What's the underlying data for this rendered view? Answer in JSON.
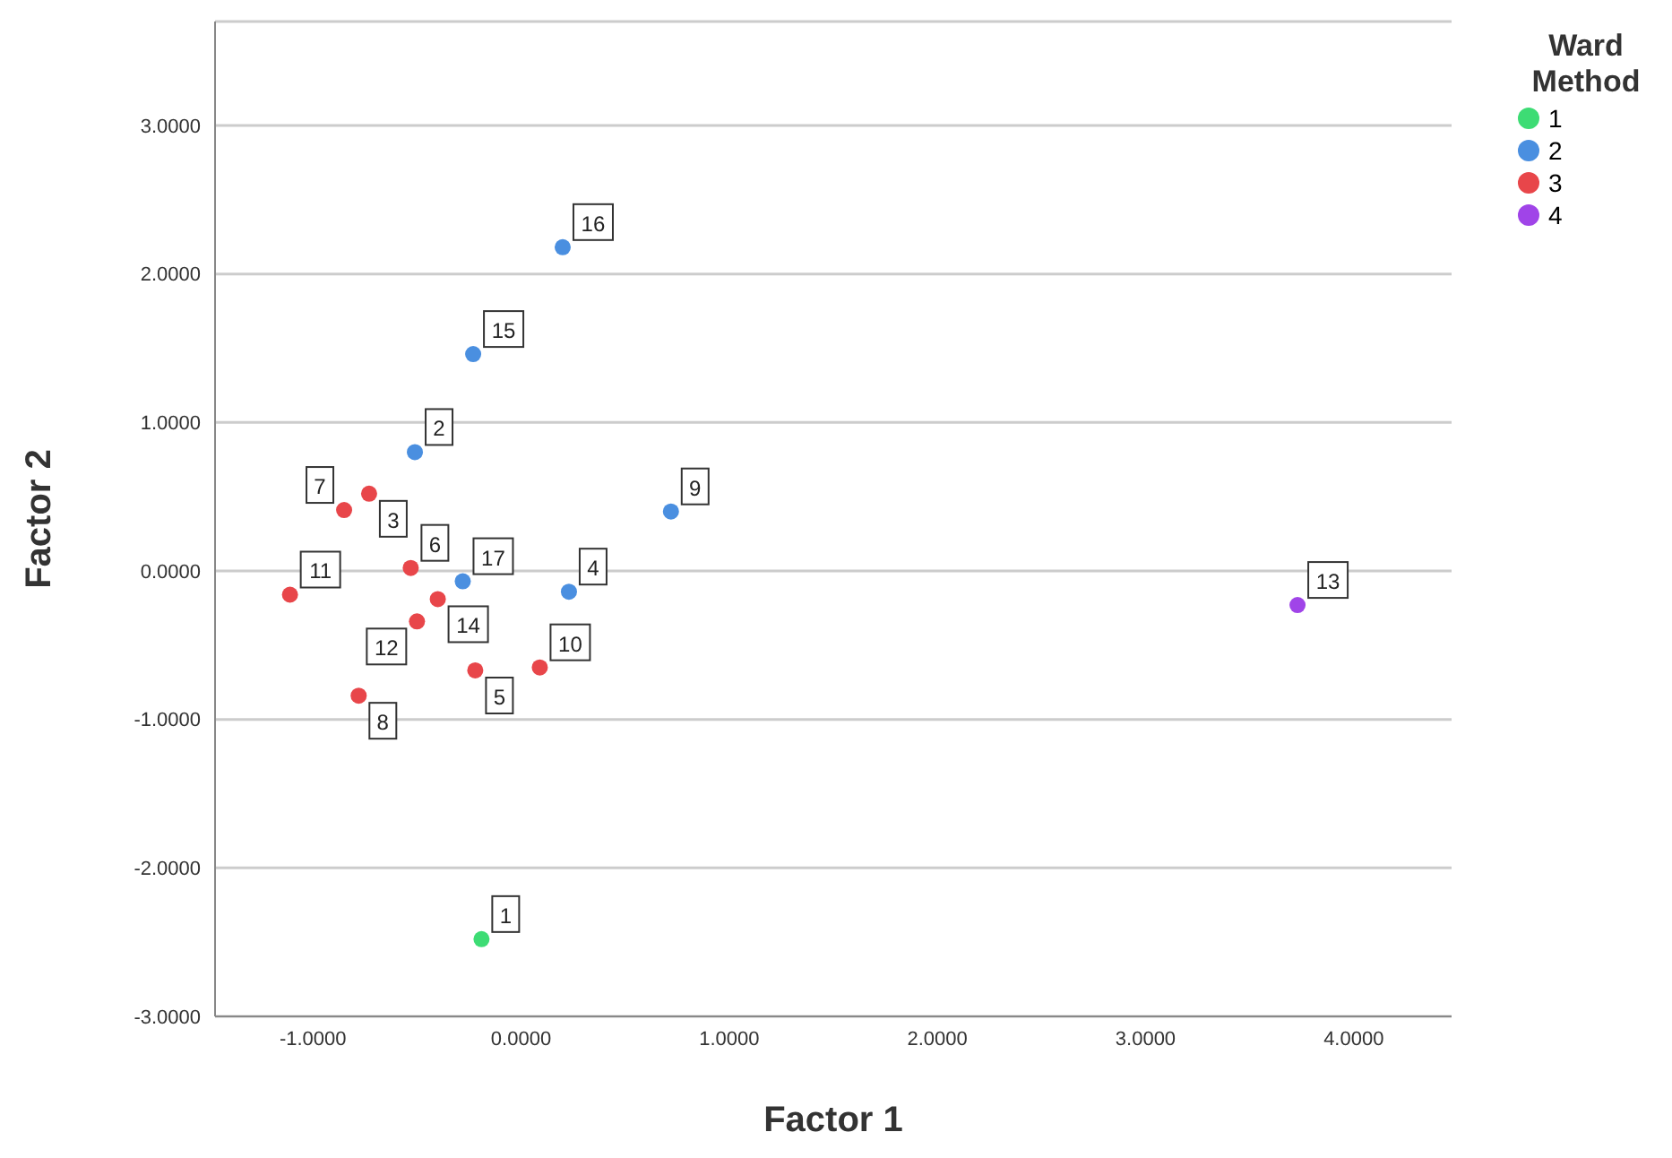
{
  "chart_data": {
    "type": "scatter",
    "xlabel": "Factor 1",
    "ylabel": "Factor 2",
    "legend_title": "Ward Method",
    "legend": "top right",
    "grid": "y",
    "marker": "circle",
    "xlim": [
      -1.47,
      4.47
    ],
    "ylim": [
      -3,
      3.7
    ],
    "xticks": [
      {
        "value": -1,
        "label": "-1.0000"
      },
      {
        "value": 0,
        "label": "0.0000"
      },
      {
        "value": 1,
        "label": "1.0000"
      },
      {
        "value": 2,
        "label": "2.0000"
      },
      {
        "value": 3,
        "label": "3.0000"
      },
      {
        "value": 4,
        "label": "4.0000"
      }
    ],
    "yticks": [
      {
        "value": -3,
        "label": "-3.0000"
      },
      {
        "value": -2,
        "label": "-2.0000"
      },
      {
        "value": -1,
        "label": "-1.0000"
      },
      {
        "value": 0,
        "label": "0.0000"
      },
      {
        "value": 1,
        "label": "1.0000"
      },
      {
        "value": 2,
        "label": "2.0000"
      },
      {
        "value": 3,
        "label": "3.0000"
      }
    ],
    "series": [
      {
        "name": "1",
        "color": "#3ddc74",
        "x": [
          -0.19
        ],
        "values": [
          -2.48
        ]
      },
      {
        "name": "2",
        "color": "#4a8fe0",
        "x": [
          0.2,
          -0.23,
          -0.51,
          0.72,
          -0.28,
          0.23
        ],
        "values": [
          2.18,
          1.46,
          0.8,
          0.4,
          -0.07,
          -0.14
        ]
      },
      {
        "name": "3",
        "color": "#e8464a",
        "x": [
          -0.73,
          -0.85,
          -0.53,
          -1.11,
          -0.4,
          -0.5,
          -0.22,
          0.09,
          -0.78
        ],
        "values": [
          0.52,
          0.41,
          0.02,
          -0.16,
          -0.19,
          -0.34,
          -0.67,
          -0.65,
          -0.84
        ]
      },
      {
        "name": "4",
        "color": "#a044e8",
        "x": [
          3.73
        ],
        "values": [
          -0.23
        ]
      }
    ],
    "annotations": [
      {
        "text": "1",
        "x": -0.19,
        "y": -2.48
      },
      {
        "text": "16",
        "x": 0.2,
        "y": 2.18
      },
      {
        "text": "15",
        "x": -0.23,
        "y": 1.46
      },
      {
        "text": "2",
        "x": -0.51,
        "y": 0.8
      },
      {
        "text": "9",
        "x": 0.72,
        "y": 0.4
      },
      {
        "text": "17",
        "x": -0.28,
        "y": -0.07
      },
      {
        "text": "4",
        "x": 0.23,
        "y": -0.14
      },
      {
        "text": "3",
        "x": -0.73,
        "y": 0.52
      },
      {
        "text": "7",
        "x": -0.85,
        "y": 0.41
      },
      {
        "text": "6",
        "x": -0.53,
        "y": 0.02
      },
      {
        "text": "11",
        "x": -1.11,
        "y": -0.16
      },
      {
        "text": "14",
        "x": -0.4,
        "y": -0.19
      },
      {
        "text": "12",
        "x": -0.5,
        "y": -0.34
      },
      {
        "text": "5",
        "x": -0.22,
        "y": -0.67
      },
      {
        "text": "10",
        "x": 0.09,
        "y": -0.65
      },
      {
        "text": "8",
        "x": -0.78,
        "y": -0.84
      },
      {
        "text": "13",
        "x": 3.73,
        "y": -0.23
      }
    ]
  }
}
